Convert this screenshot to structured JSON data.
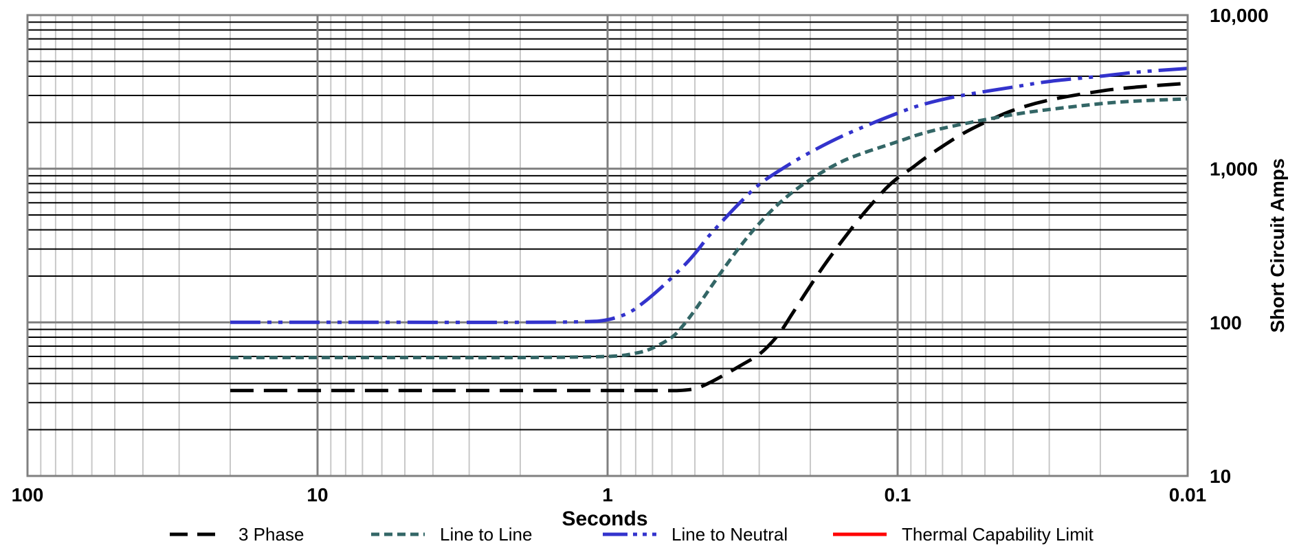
{
  "chart_data": {
    "type": "line",
    "title": "",
    "xlabel": "Seconds",
    "ylabel": "Short Circuit Amps",
    "x_scale": "log",
    "y_scale": "log",
    "x_reversed": true,
    "xlim": [
      100,
      0.01
    ],
    "ylim": [
      10,
      10000
    ],
    "x_ticks": [
      {
        "value": 100,
        "label": "100"
      },
      {
        "value": 10,
        "label": "10"
      },
      {
        "value": 1,
        "label": "1"
      },
      {
        "value": 0.1,
        "label": "0.1"
      },
      {
        "value": 0.01,
        "label": "0.01"
      }
    ],
    "y_ticks": [
      {
        "value": 10,
        "label": "10"
      },
      {
        "value": 100,
        "label": "100"
      },
      {
        "value": 1000,
        "label": "1,000"
      },
      {
        "value": 10000,
        "label": "10,000"
      }
    ],
    "y_axis_position": "right",
    "grid": true,
    "legend_position": "bottom",
    "series": [
      {
        "name": "3 Phase",
        "color": "#000000",
        "style": "dash",
        "points": [
          [
            20,
            36
          ],
          [
            10,
            36
          ],
          [
            5,
            36
          ],
          [
            2,
            36
          ],
          [
            1,
            36
          ],
          [
            0.7,
            36
          ],
          [
            0.57,
            36
          ],
          [
            0.5,
            37
          ],
          [
            0.45,
            40
          ],
          [
            0.4,
            45
          ],
          [
            0.35,
            52
          ],
          [
            0.3,
            62
          ],
          [
            0.27,
            75
          ],
          [
            0.25,
            90
          ],
          [
            0.23,
            115
          ],
          [
            0.21,
            150
          ],
          [
            0.19,
            200
          ],
          [
            0.17,
            270
          ],
          [
            0.15,
            370
          ],
          [
            0.13,
            520
          ],
          [
            0.11,
            740
          ],
          [
            0.1,
            870
          ],
          [
            0.09,
            1000
          ],
          [
            0.08,
            1180
          ],
          [
            0.07,
            1400
          ],
          [
            0.06,
            1680
          ],
          [
            0.05,
            2000
          ],
          [
            0.04,
            2400
          ],
          [
            0.03,
            2800
          ],
          [
            0.02,
            3200
          ],
          [
            0.015,
            3400
          ],
          [
            0.01,
            3600
          ]
        ]
      },
      {
        "name": "Line to Line",
        "color": "#336666",
        "style": "dot",
        "points": [
          [
            20,
            59
          ],
          [
            10,
            59
          ],
          [
            5,
            59
          ],
          [
            2,
            59
          ],
          [
            1,
            60
          ],
          [
            0.8,
            63
          ],
          [
            0.7,
            68
          ],
          [
            0.6,
            80
          ],
          [
            0.55,
            95
          ],
          [
            0.5,
            120
          ],
          [
            0.45,
            160
          ],
          [
            0.4,
            220
          ],
          [
            0.35,
            310
          ],
          [
            0.3,
            440
          ],
          [
            0.25,
            620
          ],
          [
            0.2,
            850
          ],
          [
            0.15,
            1150
          ],
          [
            0.1,
            1500
          ],
          [
            0.08,
            1720
          ],
          [
            0.06,
            1950
          ],
          [
            0.04,
            2250
          ],
          [
            0.03,
            2430
          ],
          [
            0.02,
            2650
          ],
          [
            0.015,
            2760
          ],
          [
            0.01,
            2850
          ]
        ]
      },
      {
        "name": "Line to Neutral",
        "color": "#3333CC",
        "style": "dash-dot-dot",
        "points": [
          [
            20,
            100
          ],
          [
            10,
            100
          ],
          [
            5,
            100
          ],
          [
            2,
            100
          ],
          [
            1.2,
            101
          ],
          [
            1,
            104
          ],
          [
            0.85,
            115
          ],
          [
            0.75,
            135
          ],
          [
            0.65,
            170
          ],
          [
            0.55,
            230
          ],
          [
            0.5,
            280
          ],
          [
            0.45,
            360
          ],
          [
            0.4,
            460
          ],
          [
            0.35,
            600
          ],
          [
            0.3,
            790
          ],
          [
            0.25,
            1000
          ],
          [
            0.2,
            1280
          ],
          [
            0.15,
            1680
          ],
          [
            0.1,
            2300
          ],
          [
            0.08,
            2650
          ],
          [
            0.06,
            3000
          ],
          [
            0.04,
            3400
          ],
          [
            0.03,
            3700
          ],
          [
            0.02,
            4000
          ],
          [
            0.015,
            4250
          ],
          [
            0.01,
            4500
          ]
        ]
      },
      {
        "name": "Thermal Capability Limit",
        "color": "#FF0000",
        "style": "solid",
        "points": []
      }
    ]
  }
}
